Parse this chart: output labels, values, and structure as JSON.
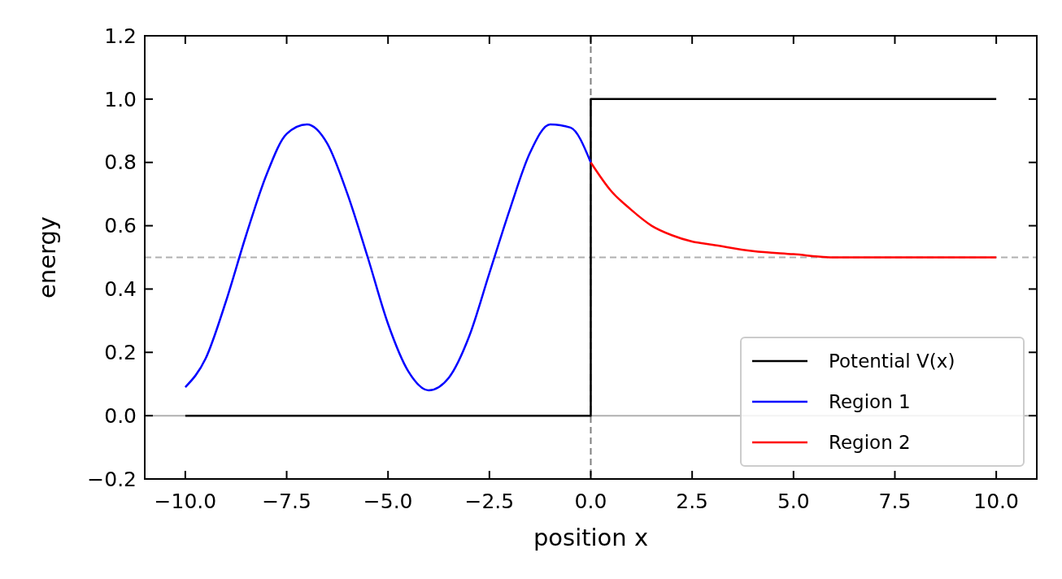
{
  "chart_data": {
    "type": "line",
    "xlabel": "position x",
    "ylabel": "energy",
    "xlim": [
      -11,
      11
    ],
    "ylim": [
      -0.2,
      1.2
    ],
    "xticks": [
      {
        "value": -10,
        "label": "−10.0"
      },
      {
        "value": -7.5,
        "label": "−7.5"
      },
      {
        "value": -5,
        "label": "−5.0"
      },
      {
        "value": -2.5,
        "label": "−2.5"
      },
      {
        "value": 0,
        "label": "0.0"
      },
      {
        "value": 2.5,
        "label": "2.5"
      },
      {
        "value": 5,
        "label": "5.0"
      },
      {
        "value": 7.5,
        "label": "7.5"
      },
      {
        "value": 10,
        "label": "10.0"
      }
    ],
    "yticks": [
      {
        "value": -0.2,
        "label": "−0.2"
      },
      {
        "value": 0,
        "label": "0.0"
      },
      {
        "value": 0.2,
        "label": "0.2"
      },
      {
        "value": 0.4,
        "label": "0.4"
      },
      {
        "value": 0.6,
        "label": "0.6"
      },
      {
        "value": 0.8,
        "label": "0.8"
      },
      {
        "value": 1,
        "label": "1.0"
      },
      {
        "value": 1.2,
        "label": "1.2"
      }
    ],
    "series": [
      {
        "name": "Potential V(x)",
        "color": "#000000",
        "x": [
          -10,
          0,
          0,
          10
        ],
        "values": [
          0,
          0,
          1,
          1
        ]
      },
      {
        "name": "Region 1",
        "color": "#0000ff",
        "x": [
          -10,
          -9.5,
          -9,
          -8.5,
          -8,
          -7.5,
          -7,
          -6.5,
          -6,
          -5.5,
          -5,
          -4.5,
          -4,
          -3.5,
          -3,
          -2.5,
          -2,
          -1.5,
          -1,
          -0.5,
          0
        ],
        "values": [
          0.09,
          0.18,
          0.36,
          0.57,
          0.76,
          0.89,
          0.92,
          0.86,
          0.7,
          0.5,
          0.29,
          0.14,
          0.08,
          0.12,
          0.25,
          0.45,
          0.65,
          0.83,
          0.92,
          0.91,
          0.8
        ]
      },
      {
        "name": "Region 2",
        "color": "#ff0000",
        "x": [
          0,
          0.5,
          1,
          1.5,
          2,
          2.5,
          3,
          4,
          5,
          6,
          7,
          8,
          10
        ],
        "values": [
          0.8,
          0.71,
          0.65,
          0.6,
          0.57,
          0.55,
          0.54,
          0.52,
          0.51,
          0.5,
          0.5,
          0.5,
          0.5
        ]
      }
    ],
    "ref_lines": [
      {
        "axis": "y",
        "value": 0,
        "color": "#b0b0b0",
        "line_style": "solid"
      },
      {
        "axis": "y",
        "value": 0.5,
        "color": "#b0b0b0",
        "line_style": "dashed"
      },
      {
        "axis": "x",
        "value": 0,
        "color": "#808080",
        "line_style": "dashed"
      }
    ],
    "legend": "bottom right",
    "grid": false,
    "marker": "none",
    "line_style": "solid"
  }
}
